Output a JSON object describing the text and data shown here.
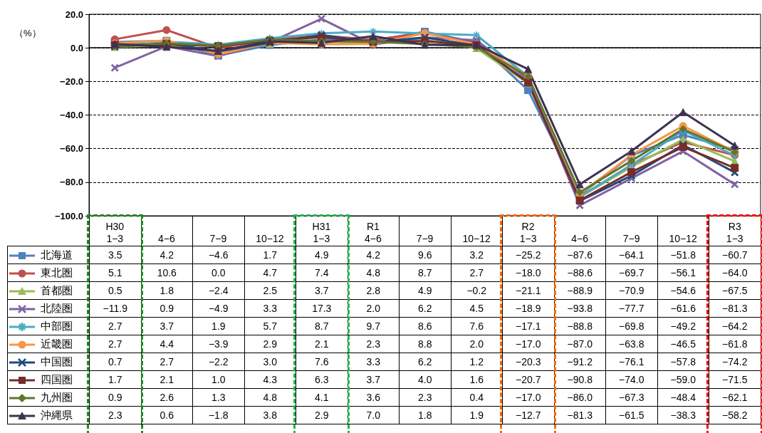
{
  "chart_data": {
    "type": "line",
    "ylabel": "（%）",
    "categories": [
      "H30\n1−3",
      "4−6",
      "7−9",
      "10−12",
      "H31\n1−3",
      "R1\n4−6",
      "7−9",
      "10−12",
      "R2\n1−3",
      "4−6",
      "7−9",
      "10−12",
      "R3\n1−3"
    ],
    "ylim": [
      -100,
      20
    ],
    "yticks": [
      {
        "value": -100,
        "label": "−100.0"
      },
      {
        "value": -80,
        "label": "−80.0"
      },
      {
        "value": -60,
        "label": "−60.0"
      },
      {
        "value": -40,
        "label": "−40.0"
      },
      {
        "value": -20,
        "label": "−20.0"
      },
      {
        "value": 0,
        "label": "0.0"
      },
      {
        "value": 20,
        "label": "20.0"
      }
    ],
    "grid": "y",
    "legend": "bottom left",
    "series": [
      {
        "name": "北海道",
        "color": "#4f81bd",
        "marker": "square",
        "values": [
          3.5,
          4.2,
          -4.6,
          1.7,
          4.9,
          4.2,
          9.6,
          3.2,
          -25.2,
          -87.6,
          -64.1,
          -51.8,
          -60.7
        ],
        "value_labels": [
          "3.5",
          "4.2",
          "−4.6",
          "1.7",
          "4.9",
          "4.2",
          "9.6",
          "3.2",
          "−25.2",
          "−87.6",
          "−64.1",
          "−51.8",
          "−60.7"
        ]
      },
      {
        "name": "東北圏",
        "color": "#c0504d",
        "marker": "circle",
        "values": [
          5.1,
          10.6,
          0.0,
          4.7,
          7.4,
          4.8,
          8.7,
          2.7,
          -18.0,
          -88.6,
          -69.7,
          -56.1,
          -64.0
        ],
        "value_labels": [
          "5.1",
          "10.6",
          "0.0",
          "4.7",
          "7.4",
          "4.8",
          "8.7",
          "2.7",
          "−18.0",
          "−88.6",
          "−69.7",
          "−56.1",
          "−64.0"
        ]
      },
      {
        "name": "首都圏",
        "color": "#9bbb59",
        "marker": "triangle",
        "values": [
          0.5,
          1.8,
          -2.4,
          2.5,
          3.7,
          2.8,
          4.9,
          -0.2,
          -21.1,
          -88.9,
          -70.9,
          -54.6,
          -67.5
        ],
        "value_labels": [
          "0.5",
          "1.8",
          "−2.4",
          "2.5",
          "3.7",
          "2.8",
          "4.9",
          "−0.2",
          "−21.1",
          "−88.9",
          "−70.9",
          "−54.6",
          "−67.5"
        ]
      },
      {
        "name": "北陸圏",
        "color": "#8064a2",
        "marker": "cross",
        "values": [
          -11.9,
          0.9,
          -4.9,
          3.3,
          17.3,
          2.0,
          6.2,
          4.5,
          -18.9,
          -93.8,
          -77.7,
          -61.6,
          -81.3
        ],
        "value_labels": [
          "−11.9",
          "0.9",
          "−4.9",
          "3.3",
          "17.3",
          "2.0",
          "6.2",
          "4.5",
          "−18.9",
          "−93.8",
          "−77.7",
          "−61.6",
          "−81.3"
        ]
      },
      {
        "name": "中部圏",
        "color": "#4bacc6",
        "marker": "star",
        "values": [
          2.7,
          3.7,
          1.9,
          5.7,
          8.7,
          9.7,
          8.6,
          7.6,
          -17.1,
          -88.8,
          -69.8,
          -49.2,
          -64.2
        ],
        "value_labels": [
          "2.7",
          "3.7",
          "1.9",
          "5.7",
          "8.7",
          "9.7",
          "8.6",
          "7.6",
          "−17.1",
          "−88.8",
          "−69.8",
          "−49.2",
          "−64.2"
        ]
      },
      {
        "name": "近畿圏",
        "color": "#f79646",
        "marker": "circle",
        "values": [
          2.7,
          4.4,
          -3.9,
          2.9,
          2.1,
          2.3,
          8.8,
          2.0,
          -17.0,
          -87.0,
          -63.8,
          -46.5,
          -61.8
        ],
        "value_labels": [
          "2.7",
          "4.4",
          "−3.9",
          "2.9",
          "2.1",
          "2.3",
          "8.8",
          "2.0",
          "−17.0",
          "−87.0",
          "−63.8",
          "−46.5",
          "−61.8"
        ]
      },
      {
        "name": "中国圏",
        "color": "#1f497d",
        "marker": "cross",
        "values": [
          0.7,
          2.7,
          -2.2,
          3.0,
          7.6,
          3.3,
          6.2,
          1.2,
          -20.3,
          -91.2,
          -76.1,
          -57.8,
          -74.2
        ],
        "value_labels": [
          "0.7",
          "2.7",
          "−2.2",
          "3.0",
          "7.6",
          "3.3",
          "6.2",
          "1.2",
          "−20.3",
          "−91.2",
          "−76.1",
          "−57.8",
          "−74.2"
        ]
      },
      {
        "name": "四国圏",
        "color": "#772c2a",
        "marker": "square",
        "values": [
          1.7,
          2.1,
          1.0,
          4.3,
          6.3,
          3.7,
          4.0,
          1.6,
          -20.7,
          -90.8,
          -74.0,
          -59.0,
          -71.5
        ],
        "value_labels": [
          "1.7",
          "2.1",
          "1.0",
          "4.3",
          "6.3",
          "3.7",
          "4.0",
          "1.6",
          "−20.7",
          "−90.8",
          "−74.0",
          "−59.0",
          "−71.5"
        ]
      },
      {
        "name": "九州圏",
        "color": "#5f7530",
        "marker": "diamond",
        "values": [
          0.9,
          2.6,
          1.3,
          4.8,
          4.1,
          3.6,
          2.3,
          0.4,
          -17.0,
          -86.0,
          -67.3,
          -48.4,
          -62.1
        ],
        "value_labels": [
          "0.9",
          "2.6",
          "1.3",
          "4.8",
          "4.1",
          "3.6",
          "2.3",
          "0.4",
          "−17.0",
          "−86.0",
          "−67.3",
          "−48.4",
          "−62.1"
        ]
      },
      {
        "name": "沖縄県",
        "color": "#3f3151",
        "marker": "triangle",
        "values": [
          2.3,
          0.6,
          -1.8,
          3.8,
          2.9,
          7.0,
          1.8,
          1.9,
          -12.7,
          -81.3,
          -61.5,
          -38.3,
          -58.2
        ],
        "value_labels": [
          "2.3",
          "0.6",
          "−1.8",
          "3.8",
          "2.9",
          "7.0",
          "1.8",
          "1.9",
          "−12.7",
          "−81.3",
          "−61.5",
          "−38.3",
          "−58.2"
        ]
      }
    ]
  }
}
